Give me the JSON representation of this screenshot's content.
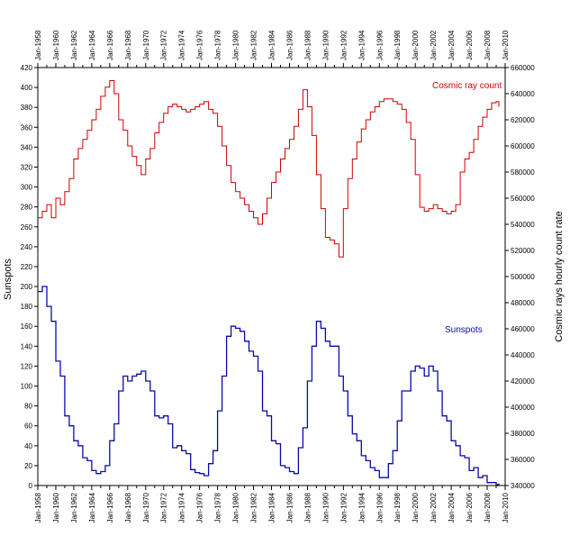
{
  "chart_data": {
    "type": "line",
    "title": "",
    "ylabel": "Sunspots",
    "y2label": "Cosmic rays hourly count rate",
    "xlabel": "",
    "xlim": [
      1958,
      2010
    ],
    "ylim": [
      0,
      420
    ],
    "y2lim": [
      340000,
      660000
    ],
    "x_ticks": [
      "Jan-1958",
      "Jan-1960",
      "Jan-1962",
      "Jan-1964",
      "Jan-1966",
      "Jan-1968",
      "Jan-1970",
      "Jan-1972",
      "Jan-1974",
      "Jan-1976",
      "Jan-1978",
      "Jan-1980",
      "Jan-1982",
      "Jan-1984",
      "Jan-1986",
      "Jan-1988",
      "Jan-1990",
      "Jan-1992",
      "Jan-1994",
      "Jan-1996",
      "Jan-1998",
      "Jan-2000",
      "Jan-2002",
      "Jan-2004",
      "Jan-2006",
      "Jan-2008",
      "Jan-2010"
    ],
    "y_ticks": [
      "0",
      "20",
      "40",
      "60",
      "80",
      "100",
      "120",
      "140",
      "160",
      "180",
      "200",
      "220",
      "240",
      "260",
      "280",
      "300",
      "320",
      "340",
      "360",
      "380",
      "400",
      "420"
    ],
    "y2_ticks": [
      "340000",
      "360000",
      "380000",
      "400000",
      "420000",
      "440000",
      "460000",
      "480000",
      "500000",
      "520000",
      "540000",
      "560000",
      "580000",
      "600000",
      "620000",
      "640000",
      "660000"
    ],
    "legend": "inline labels: Cosmic ray count top-right, Sunspots mid-right",
    "series": [
      {
        "name": "Cosmic ray count",
        "axis": "right",
        "color": "#cc0000",
        "x": [
          1958.0,
          1958.5,
          1959.0,
          1959.5,
          1960.0,
          1960.5,
          1961.0,
          1961.5,
          1962.0,
          1962.5,
          1963.0,
          1963.5,
          1964.0,
          1964.5,
          1965.0,
          1965.5,
          1966.0,
          1966.5,
          1967.0,
          1967.5,
          1968.0,
          1968.5,
          1969.0,
          1969.5,
          1970.0,
          1970.5,
          1971.0,
          1971.5,
          1972.0,
          1972.5,
          1973.0,
          1973.5,
          1974.0,
          1974.5,
          1975.0,
          1975.5,
          1976.0,
          1976.5,
          1977.0,
          1977.5,
          1978.0,
          1978.5,
          1979.0,
          1979.5,
          1980.0,
          1980.5,
          1981.0,
          1981.5,
          1982.0,
          1982.5,
          1983.0,
          1983.5,
          1984.0,
          1984.5,
          1985.0,
          1985.5,
          1986.0,
          1986.5,
          1987.0,
          1987.5,
          1988.0,
          1988.5,
          1989.0,
          1989.5,
          1990.0,
          1990.5,
          1991.0,
          1991.5,
          1992.0,
          1992.5,
          1993.0,
          1993.5,
          1994.0,
          1994.5,
          1995.0,
          1995.5,
          1996.0,
          1996.5,
          1997.0,
          1997.5,
          1998.0,
          1998.5,
          1999.0,
          1999.5,
          2000.0,
          2000.5,
          2001.0,
          2001.5,
          2002.0,
          2002.5,
          2003.0,
          2003.5,
          2004.0,
          2004.5,
          2005.0,
          2005.5,
          2006.0,
          2006.5,
          2007.0,
          2007.5,
          2008.0,
          2008.5,
          2009.0,
          2009.3
        ],
        "values": [
          545000,
          550000,
          555000,
          545000,
          560000,
          555000,
          565000,
          575000,
          590000,
          598000,
          605000,
          612000,
          620000,
          628000,
          638000,
          645000,
          650000,
          640000,
          620000,
          612000,
          600000,
          592000,
          585000,
          578000,
          590000,
          598000,
          610000,
          618000,
          625000,
          630000,
          632000,
          630000,
          628000,
          626000,
          628000,
          630000,
          632000,
          634000,
          628000,
          625000,
          615000,
          600000,
          585000,
          572000,
          565000,
          560000,
          555000,
          550000,
          545000,
          540000,
          548000,
          560000,
          572000,
          580000,
          590000,
          598000,
          605000,
          615000,
          628000,
          643000,
          630000,
          608000,
          578000,
          552000,
          530000,
          528000,
          525000,
          515000,
          552000,
          575000,
          590000,
          603000,
          613000,
          620000,
          626000,
          630000,
          634000,
          636000,
          636000,
          634000,
          632000,
          628000,
          618000,
          605000,
          578000,
          553000,
          550000,
          552000,
          555000,
          552000,
          550000,
          548000,
          550000,
          555000,
          580000,
          590000,
          595000,
          605000,
          615000,
          622000,
          628000,
          633000,
          634000,
          630000
        ]
      },
      {
        "name": "Sunspots",
        "axis": "left",
        "color": "#0a0aaa",
        "x": [
          1958.0,
          1958.5,
          1959.0,
          1959.5,
          1960.0,
          1960.5,
          1961.0,
          1961.5,
          1962.0,
          1962.5,
          1963.0,
          1963.5,
          1964.0,
          1964.5,
          1965.0,
          1965.5,
          1966.0,
          1966.5,
          1967.0,
          1967.5,
          1968.0,
          1968.5,
          1969.0,
          1969.5,
          1970.0,
          1970.5,
          1971.0,
          1971.5,
          1972.0,
          1972.5,
          1973.0,
          1973.5,
          1974.0,
          1974.5,
          1975.0,
          1975.5,
          1976.0,
          1976.5,
          1977.0,
          1977.5,
          1978.0,
          1978.5,
          1979.0,
          1979.5,
          1980.0,
          1980.5,
          1981.0,
          1981.5,
          1982.0,
          1982.5,
          1983.0,
          1983.5,
          1984.0,
          1984.5,
          1985.0,
          1985.5,
          1986.0,
          1986.5,
          1987.0,
          1987.5,
          1988.0,
          1988.5,
          1989.0,
          1989.5,
          1990.0,
          1990.5,
          1991.0,
          1991.5,
          1992.0,
          1992.5,
          1993.0,
          1993.5,
          1994.0,
          1994.5,
          1995.0,
          1995.5,
          1996.0,
          1996.5,
          1997.0,
          1997.5,
          1998.0,
          1998.5,
          1999.0,
          1999.5,
          2000.0,
          2000.5,
          2001.0,
          2001.5,
          2002.0,
          2002.5,
          2003.0,
          2003.5,
          2004.0,
          2004.5,
          2005.0,
          2005.5,
          2006.0,
          2006.5,
          2007.0,
          2007.5,
          2008.0,
          2008.5,
          2009.0,
          2009.3
        ],
        "values": [
          195,
          200,
          180,
          165,
          125,
          110,
          70,
          60,
          45,
          40,
          28,
          25,
          15,
          12,
          14,
          20,
          45,
          62,
          95,
          110,
          105,
          110,
          112,
          115,
          105,
          95,
          70,
          68,
          70,
          62,
          38,
          40,
          35,
          32,
          16,
          13,
          12,
          10,
          22,
          35,
          75,
          110,
          150,
          160,
          158,
          155,
          145,
          135,
          130,
          115,
          75,
          70,
          45,
          42,
          20,
          18,
          14,
          12,
          38,
          58,
          105,
          140,
          165,
          158,
          145,
          140,
          140,
          110,
          95,
          70,
          52,
          45,
          30,
          25,
          18,
          15,
          8,
          8,
          22,
          35,
          65,
          95,
          95,
          115,
          120,
          118,
          110,
          120,
          115,
          95,
          70,
          65,
          45,
          40,
          30,
          28,
          15,
          18,
          8,
          10,
          3,
          3,
          1,
          2
        ]
      }
    ]
  },
  "labels": {
    "cosmic": "Cosmic ray count",
    "sunspots": "Sunspots"
  }
}
